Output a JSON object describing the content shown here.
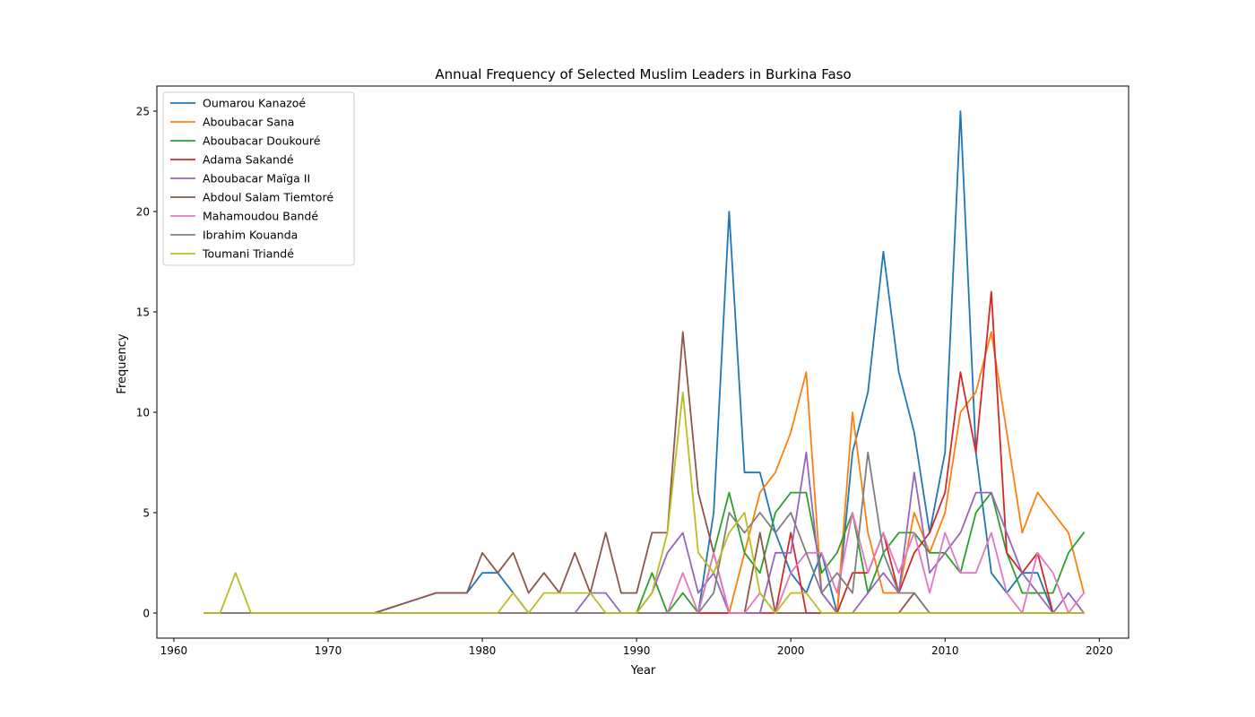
{
  "chart_data": {
    "type": "line",
    "title": "Annual Frequency of Selected Muslim Leaders in Burkina Faso",
    "xlabel": "Year",
    "ylabel": "Frequency",
    "xlim": [
      1958.9,
      2021.9
    ],
    "ylim": [
      -1.25,
      26.25
    ],
    "xticks": [
      1960,
      1970,
      1980,
      1990,
      2000,
      2010,
      2020
    ],
    "yticks": [
      0,
      5,
      10,
      15,
      20,
      25
    ],
    "grid": false,
    "legend_position": "upper-left",
    "x": [
      1962,
      1963,
      1964,
      1965,
      1966,
      1967,
      1968,
      1969,
      1970,
      1971,
      1972,
      1973,
      1974,
      1975,
      1976,
      1977,
      1978,
      1979,
      1980,
      1981,
      1982,
      1983,
      1984,
      1985,
      1986,
      1987,
      1988,
      1989,
      1990,
      1991,
      1992,
      1993,
      1994,
      1995,
      1996,
      1997,
      1998,
      1999,
      2000,
      2001,
      2002,
      2003,
      2004,
      2005,
      2006,
      2007,
      2008,
      2009,
      2010,
      2011,
      2012,
      2013,
      2014,
      2015,
      2016,
      2017,
      2018,
      2019
    ],
    "series": [
      {
        "name": "Oumarou Kanazoé",
        "color": "#1f77b4",
        "values": [
          0,
          0,
          0,
          0,
          0,
          0,
          0,
          0,
          0,
          0,
          0,
          0,
          0.25,
          0.5,
          0.75,
          1,
          1,
          1,
          2,
          2,
          1,
          0,
          0,
          0,
          0,
          0,
          0,
          0,
          0,
          0,
          0,
          0,
          0,
          5,
          20,
          7,
          7,
          4,
          2,
          1,
          3,
          0,
          8,
          11,
          18,
          12,
          9,
          4,
          8,
          25,
          8,
          2,
          1,
          2,
          2,
          0,
          0,
          0
        ]
      },
      {
        "name": "Aboubacar Sana",
        "color": "#ff7f0e",
        "values": [
          0,
          0,
          0,
          0,
          0,
          0,
          0,
          0,
          0,
          0,
          0,
          0,
          0,
          0,
          0,
          0,
          0,
          0,
          0,
          0,
          0,
          0,
          0,
          0,
          0,
          0,
          0,
          0,
          0,
          0,
          0,
          0,
          0,
          0,
          0,
          3,
          6,
          7,
          9,
          12,
          1,
          0,
          10,
          4,
          1,
          1,
          5,
          3,
          5,
          10,
          11,
          14,
          9,
          4,
          6,
          5,
          4,
          1
        ]
      },
      {
        "name": "Aboubacar Doukouré",
        "color": "#2ca02c",
        "values": [
          0,
          0,
          0,
          0,
          0,
          0,
          0,
          0,
          0,
          0,
          0,
          0,
          0,
          0,
          0,
          0,
          0,
          0,
          0,
          0,
          0,
          0,
          0,
          0,
          0,
          0,
          0,
          0,
          0,
          2,
          0,
          1,
          0,
          3,
          6,
          3,
          2,
          5,
          6,
          6,
          2,
          3,
          5,
          1,
          3,
          4,
          4,
          3,
          3,
          2,
          5,
          6,
          3,
          1,
          1,
          1,
          3,
          4
        ]
      },
      {
        "name": "Adama Sakandé",
        "color": "#d62728",
        "values": [
          0,
          0,
          0,
          0,
          0,
          0,
          0,
          0,
          0,
          0,
          0,
          0,
          0,
          0,
          0,
          0,
          0,
          0,
          0,
          0,
          0,
          0,
          0,
          0,
          0,
          0,
          0,
          0,
          0,
          0,
          0,
          0,
          0,
          0,
          0,
          0,
          0,
          0,
          4,
          0,
          0,
          0,
          2,
          2,
          4,
          1,
          3,
          4,
          6,
          12,
          8,
          16,
          3,
          2,
          3,
          0,
          0,
          0
        ]
      },
      {
        "name": "Aboubacar Maïga II",
        "color": "#9467bd",
        "values": [
          0,
          0,
          0,
          0,
          0,
          0,
          0,
          0,
          0,
          0,
          0,
          0,
          0,
          0,
          0,
          0,
          0,
          0,
          0,
          0,
          0,
          0,
          0,
          0,
          0,
          1,
          1,
          0,
          0,
          1,
          3,
          4,
          1,
          2,
          0,
          0,
          0,
          3,
          3,
          8,
          1,
          0,
          0,
          1,
          2,
          1,
          7,
          2,
          3,
          4,
          6,
          6,
          4,
          2,
          1,
          0,
          1,
          0
        ]
      },
      {
        "name": "Abdoul Salam Tiemtoré",
        "color": "#8c564b",
        "values": [
          0,
          0,
          0,
          0,
          0,
          0,
          0,
          0,
          0,
          0,
          0,
          0,
          0.25,
          0.5,
          0.75,
          1,
          1,
          1,
          3,
          2,
          3,
          1,
          2,
          1,
          3,
          1,
          4,
          1,
          1,
          4,
          4,
          14,
          6,
          3,
          0,
          0,
          4,
          0,
          0,
          0,
          0,
          0,
          0,
          0,
          0,
          0,
          1,
          0,
          0,
          0,
          0,
          0,
          0,
          0,
          0,
          0,
          0,
          0
        ]
      },
      {
        "name": "Mahamoudou Bandé",
        "color": "#e377c2",
        "values": [
          0,
          0,
          0,
          0,
          0,
          0,
          0,
          0,
          0,
          0,
          0,
          0,
          0,
          0,
          0,
          0,
          0,
          0,
          0,
          0,
          0,
          0,
          0,
          0,
          0,
          0,
          0,
          0,
          0,
          0,
          0,
          2,
          0,
          3,
          0,
          0,
          1,
          0,
          2,
          3,
          3,
          1,
          5,
          2,
          4,
          2,
          4,
          1,
          4,
          2,
          2,
          4,
          1,
          0,
          3,
          2,
          0,
          1
        ]
      },
      {
        "name": "Ibrahim Kouanda",
        "color": "#7f7f7f",
        "values": [
          0,
          0,
          0,
          0,
          0,
          0,
          0,
          0,
          0,
          0,
          0,
          0,
          0,
          0,
          0,
          0,
          0,
          0,
          0,
          0,
          0,
          0,
          0,
          0,
          0,
          0,
          0,
          0,
          0,
          0,
          0,
          0,
          0,
          1,
          5,
          4,
          5,
          4,
          5,
          3,
          1,
          2,
          1,
          8,
          3,
          1,
          1,
          0,
          0,
          0,
          0,
          0,
          0,
          0,
          0,
          0,
          0,
          0
        ]
      },
      {
        "name": "Toumani Triandé",
        "color": "#bcbd22",
        "values": [
          0,
          0,
          2,
          0,
          0,
          0,
          0,
          0,
          0,
          0,
          0,
          0,
          0,
          0,
          0,
          0,
          0,
          0,
          0,
          0,
          1,
          0,
          1,
          1,
          1,
          1,
          0,
          0,
          0,
          1,
          4,
          11,
          3,
          2,
          4,
          5,
          1,
          0,
          1,
          1,
          0,
          0,
          0,
          0,
          0,
          0,
          0,
          0,
          0,
          0,
          0,
          0,
          0,
          0,
          0,
          0,
          0,
          0
        ]
      }
    ]
  }
}
